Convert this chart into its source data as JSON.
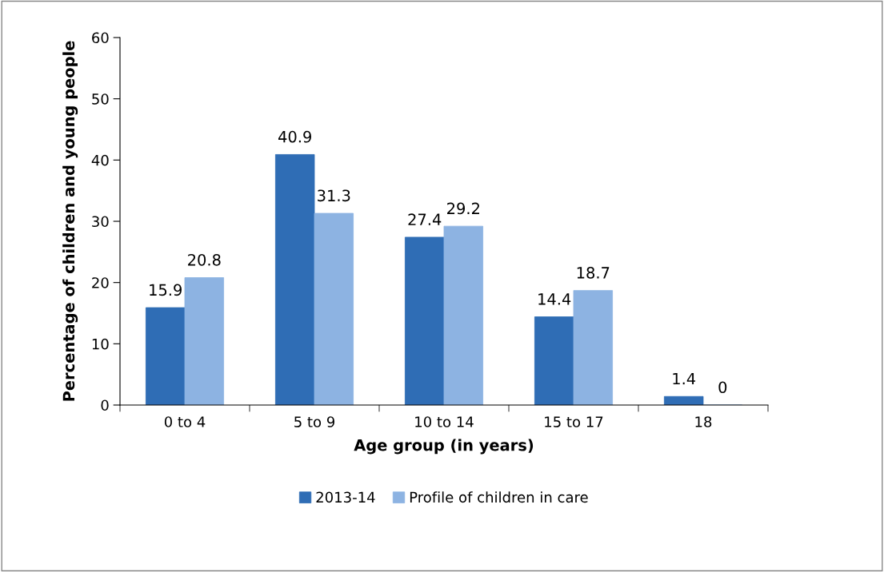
{
  "chart_data": {
    "type": "bar",
    "xlabel": "Age group (in years)",
    "ylabel": "Percentage of children and young people",
    "categories": [
      "0 to 4",
      "5 to 9",
      "10 to 14",
      "15 to 17",
      "18"
    ],
    "series": [
      {
        "name": "2013-14",
        "color": "#2f6db5",
        "values": [
          15.9,
          40.9,
          27.4,
          14.4,
          1.4
        ]
      },
      {
        "name": "Profile of children in care",
        "color": "#8db3e2",
        "values": [
          20.8,
          31.3,
          29.2,
          18.7,
          0
        ]
      }
    ],
    "ylim": [
      0,
      60
    ],
    "yticks": [
      0,
      10,
      20,
      30,
      40,
      50,
      60
    ],
    "data_labels": true,
    "grid": false,
    "legend": "bottom"
  }
}
